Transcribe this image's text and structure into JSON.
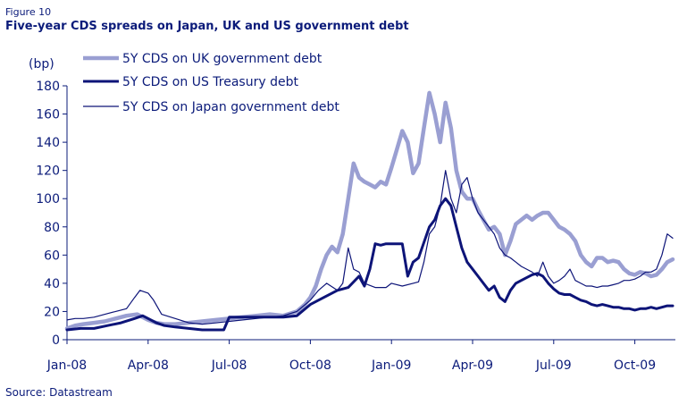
{
  "figure_label": "Figure 10",
  "title": "Five-year CDS spreads on Japan, UK and US government debt",
  "source": "Source: Datastream",
  "chart_data": {
    "type": "line",
    "ylabel": "(bp)",
    "ylim": [
      0,
      180
    ],
    "yticks": [
      0,
      20,
      40,
      60,
      80,
      100,
      120,
      140,
      160,
      180
    ],
    "xlim": [
      0,
      22.5
    ],
    "xticks": [
      {
        "pos": 0,
        "label": "Jan-08"
      },
      {
        "pos": 3,
        "label": "Apr-08"
      },
      {
        "pos": 6,
        "label": "Jul-08"
      },
      {
        "pos": 9,
        "label": "Oct-08"
      },
      {
        "pos": 12,
        "label": "Jan-09"
      },
      {
        "pos": 15,
        "label": "Apr-09"
      },
      {
        "pos": 18,
        "label": "Jul-09"
      },
      {
        "pos": 21,
        "label": "Oct-09"
      }
    ],
    "colors": {
      "uk": "#9a9fd2",
      "us": "#0d1478",
      "japan": "#0d1478"
    },
    "series": [
      {
        "name": "5Y CDS on UK government debt",
        "key": "uk",
        "x": [
          0,
          0.3,
          0.6,
          1.0,
          1.4,
          1.8,
          2.2,
          2.6,
          2.8,
          3.0,
          3.3,
          3.6,
          4.0,
          4.5,
          5.0,
          5.5,
          6.0,
          6.5,
          7.0,
          7.5,
          8.0,
          8.5,
          8.8,
          9.0,
          9.2,
          9.4,
          9.6,
          9.8,
          10.0,
          10.2,
          10.4,
          10.6,
          10.8,
          11.0,
          11.2,
          11.4,
          11.6,
          11.8,
          12.0,
          12.2,
          12.4,
          12.6,
          12.8,
          13.0,
          13.2,
          13.4,
          13.6,
          13.8,
          14.0,
          14.2,
          14.4,
          14.6,
          14.8,
          15.0,
          15.2,
          15.4,
          15.6,
          15.8,
          16.0,
          16.2,
          16.4,
          16.6,
          16.8,
          17.0,
          17.2,
          17.4,
          17.6,
          17.8,
          18.0,
          18.2,
          18.4,
          18.6,
          18.8,
          19.0,
          19.2,
          19.4,
          19.6,
          19.8,
          20.0,
          20.2,
          20.4,
          20.6,
          20.8,
          21.0,
          21.2,
          21.4,
          21.6,
          21.8,
          22.0,
          22.2,
          22.4
        ],
        "values": [
          8,
          10,
          11,
          12,
          13,
          15,
          17,
          18,
          16,
          14,
          12,
          11,
          11,
          12,
          13,
          14,
          15,
          16,
          17,
          18,
          17,
          20,
          25,
          30,
          38,
          50,
          60,
          66,
          62,
          75,
          100,
          125,
          115,
          112,
          110,
          108,
          112,
          110,
          122,
          135,
          148,
          140,
          118,
          125,
          150,
          175,
          160,
          140,
          168,
          150,
          120,
          105,
          100,
          100,
          92,
          85,
          78,
          80,
          75,
          60,
          70,
          82,
          85,
          88,
          85,
          88,
          90,
          90,
          85,
          80,
          78,
          75,
          70,
          60,
          55,
          52,
          58,
          58,
          55,
          56,
          55,
          50,
          47,
          46,
          48,
          47,
          45,
          46,
          50,
          55,
          57
        ]
      },
      {
        "name": "5Y CDS on US Treasury debt",
        "key": "us",
        "x": [
          0,
          0.5,
          1.0,
          1.5,
          2.0,
          2.5,
          2.8,
          3.0,
          3.3,
          3.6,
          4.0,
          4.5,
          5.0,
          5.5,
          5.8,
          6.0,
          6.5,
          7.0,
          7.5,
          8.0,
          8.5,
          9.0,
          9.5,
          10.0,
          10.4,
          10.8,
          11.0,
          11.2,
          11.4,
          11.6,
          11.8,
          12.0,
          12.4,
          12.6,
          12.8,
          13.0,
          13.4,
          13.6,
          13.8,
          14.0,
          14.2,
          14.4,
          14.6,
          14.8,
          15.0,
          15.2,
          15.4,
          15.6,
          15.8,
          16.0,
          16.2,
          16.4,
          16.6,
          16.8,
          17.0,
          17.2,
          17.4,
          17.6,
          17.8,
          18.0,
          18.2,
          18.4,
          18.6,
          18.8,
          19.0,
          19.2,
          19.4,
          19.6,
          19.8,
          20.0,
          20.2,
          20.4,
          20.6,
          20.8,
          21.0,
          21.2,
          21.4,
          21.6,
          21.8,
          22.0,
          22.2,
          22.4
        ],
        "values": [
          7,
          8,
          8,
          10,
          12,
          15,
          17,
          15,
          12,
          10,
          9,
          8,
          7,
          7,
          7,
          16,
          16,
          16,
          16,
          16,
          17,
          25,
          30,
          35,
          37,
          45,
          38,
          50,
          68,
          67,
          68,
          68,
          68,
          45,
          55,
          58,
          80,
          85,
          95,
          100,
          95,
          80,
          65,
          55,
          50,
          45,
          40,
          35,
          38,
          30,
          27,
          35,
          40,
          42,
          44,
          46,
          47,
          45,
          40,
          36,
          33,
          32,
          32,
          30,
          28,
          27,
          25,
          24,
          25,
          24,
          23,
          23,
          22,
          22,
          21,
          22,
          22,
          23,
          22,
          23,
          24,
          24
        ]
      },
      {
        "name": "5Y CDS on Japan government debt",
        "key": "japan",
        "x": [
          0,
          0.3,
          0.6,
          1.0,
          1.4,
          1.8,
          2.2,
          2.5,
          2.7,
          3.0,
          3.2,
          3.5,
          4.0,
          4.5,
          5.0,
          5.5,
          6.0,
          6.5,
          7.0,
          7.5,
          8.0,
          8.5,
          9.0,
          9.3,
          9.6,
          10.0,
          10.2,
          10.4,
          10.6,
          10.8,
          11.0,
          11.4,
          11.8,
          12.0,
          12.4,
          12.8,
          13.0,
          13.2,
          13.4,
          13.6,
          13.8,
          14.0,
          14.2,
          14.4,
          14.6,
          14.8,
          15.0,
          15.2,
          15.4,
          15.6,
          15.8,
          16.0,
          16.2,
          16.4,
          16.6,
          16.8,
          17.0,
          17.2,
          17.4,
          17.6,
          17.8,
          18.0,
          18.2,
          18.4,
          18.6,
          18.8,
          19.0,
          19.2,
          19.4,
          19.6,
          19.8,
          20.0,
          20.2,
          20.4,
          20.6,
          20.8,
          21.0,
          21.2,
          21.4,
          21.6,
          21.8,
          22.0,
          22.2,
          22.4
        ],
        "values": [
          14,
          15,
          15,
          16,
          18,
          20,
          22,
          30,
          35,
          33,
          28,
          18,
          15,
          12,
          11,
          12,
          13,
          14,
          15,
          16,
          17,
          20,
          28,
          35,
          40,
          35,
          40,
          65,
          50,
          48,
          40,
          37,
          37,
          40,
          38,
          40,
          41,
          55,
          75,
          80,
          95,
          120,
          100,
          90,
          110,
          115,
          100,
          90,
          85,
          80,
          75,
          65,
          60,
          58,
          55,
          52,
          50,
          48,
          45,
          55,
          45,
          40,
          42,
          45,
          50,
          42,
          40,
          38,
          38,
          37,
          38,
          38,
          39,
          40,
          42,
          42,
          43,
          45,
          48,
          48,
          50,
          60,
          75,
          72
        ]
      }
    ]
  }
}
